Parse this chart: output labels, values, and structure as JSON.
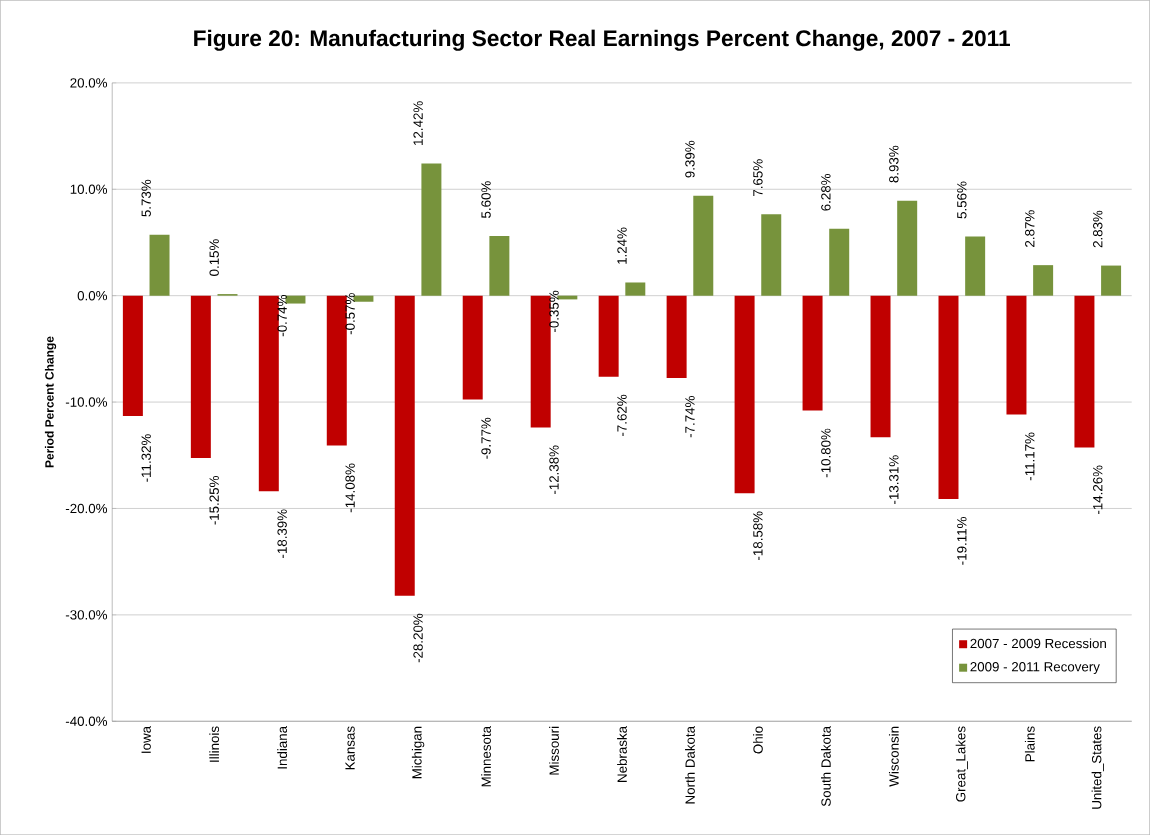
{
  "chart_data": {
    "type": "bar",
    "title": "Figure 20: Manufacturing Sector Real Earnings Percent Change, 2007 - 2011",
    "ylabel": "Period Percent Change",
    "categories": [
      "Iowa",
      "Illinois",
      "Indiana",
      "Kansas",
      "Michigan",
      "Minnesota",
      "Missouri",
      "Nebraska",
      "North Dakota",
      "Ohio",
      "South Dakota",
      "Wisconsin",
      "Great_Lakes",
      "Plains",
      "United_States"
    ],
    "series": [
      {
        "name": "2007 - 2009 Recession",
        "color": "#c00000",
        "values": [
          -11.32,
          -15.25,
          -18.39,
          -14.08,
          -28.2,
          -9.77,
          -12.38,
          -7.62,
          -7.74,
          -18.58,
          -10.8,
          -13.31,
          -19.11,
          -11.17,
          -14.26
        ],
        "value_labels": [
          "-11.32%",
          "-15.25%",
          "-18.39%",
          "-14.08%",
          "-28.20%",
          "-9.77%",
          "-12.38%",
          "-7.62%",
          "-7.74%",
          "-18.58%",
          "-10.80%",
          "-13.31%",
          "-19.11%",
          "-11.17%",
          "-14.26%"
        ]
      },
      {
        "name": "2009 - 2011 Recovery",
        "color": "#77933c",
        "values": [
          5.73,
          0.15,
          -0.74,
          -0.57,
          12.42,
          5.6,
          -0.35,
          1.24,
          9.39,
          7.65,
          6.28,
          8.93,
          5.56,
          2.87,
          2.83
        ],
        "value_labels": [
          "5.73%",
          "0.15%",
          "-0.74%",
          "-0.57%",
          "12.42%",
          "5.60%",
          "-0.35%",
          "1.24%",
          "9.39%",
          "7.65%",
          "6.28%",
          "8.93%",
          "5.56%",
          "2.87%",
          "2.83%"
        ]
      }
    ],
    "ylim": [
      -40,
      20
    ],
    "yticks": [
      {
        "value": -40,
        "label": "-40.0%"
      },
      {
        "value": -30,
        "label": "-30.0%"
      },
      {
        "value": -20,
        "label": "-20.0%"
      },
      {
        "value": -10,
        "label": "-10.0%"
      },
      {
        "value": 0,
        "label": "0.0%"
      },
      {
        "value": 10,
        "label": "10.0%"
      },
      {
        "value": 20,
        "label": "20.0%"
      }
    ],
    "grid": "y",
    "legend": "bottom right"
  }
}
